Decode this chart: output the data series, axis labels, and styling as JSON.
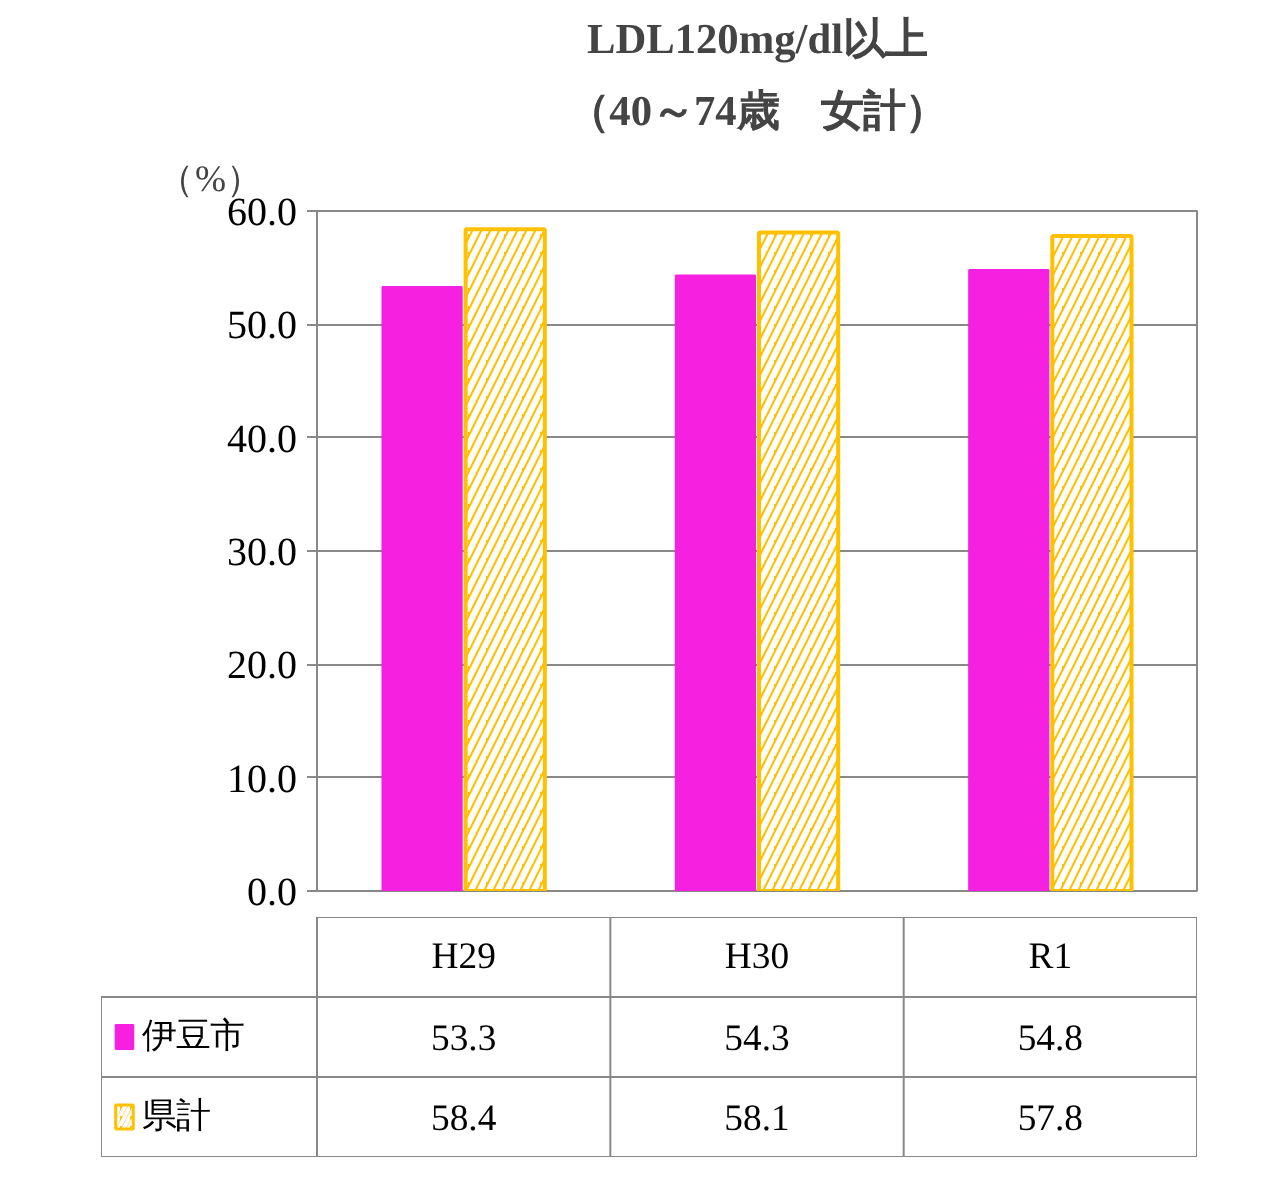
{
  "chart_data": {
    "type": "bar",
    "title": "LDL120mg/dl以上",
    "subtitle": "（40～74歳　女計）",
    "ylabel": "（%）",
    "categories": [
      "H29",
      "H30",
      "R1"
    ],
    "series": [
      {
        "name": "伊豆市",
        "color": "#f520e0",
        "values": [
          53.3,
          54.3,
          54.8
        ]
      },
      {
        "name": "県計",
        "color": "#ffc000",
        "values": [
          58.4,
          58.1,
          57.8
        ]
      }
    ],
    "ylim": [
      0,
      60
    ],
    "yticks": [
      {
        "value": 0,
        "label": "0.0"
      },
      {
        "value": 10,
        "label": "10.0"
      },
      {
        "value": 20,
        "label": "20.0"
      },
      {
        "value": 30,
        "label": "30.0"
      },
      {
        "value": 40,
        "label": "40.0"
      },
      {
        "value": 50,
        "label": "50.0"
      },
      {
        "value": 60,
        "label": "60.0"
      }
    ],
    "grid": "y",
    "legend": "bottom left",
    "data_labels": true
  }
}
